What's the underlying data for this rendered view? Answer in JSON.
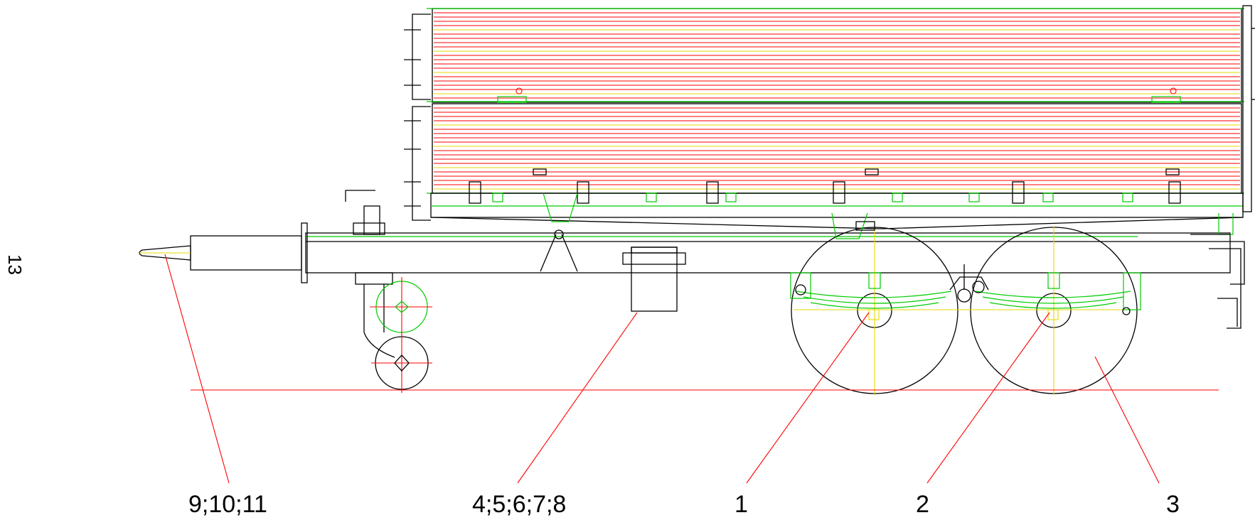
{
  "page_number": "13",
  "callouts": [
    {
      "id": "c1",
      "label": "9;10;11"
    },
    {
      "id": "c2",
      "label": "4;5;6;7;8"
    },
    {
      "id": "c3",
      "label": "1"
    },
    {
      "id": "c4",
      "label": "2"
    },
    {
      "id": "c5",
      "label": "3"
    }
  ],
  "colors": {
    "outline": "#000000",
    "leader_lines": "#ff0000",
    "board_lines": "#ff0000",
    "hardware": "#00cc00",
    "centerlines": "#e6d800"
  }
}
